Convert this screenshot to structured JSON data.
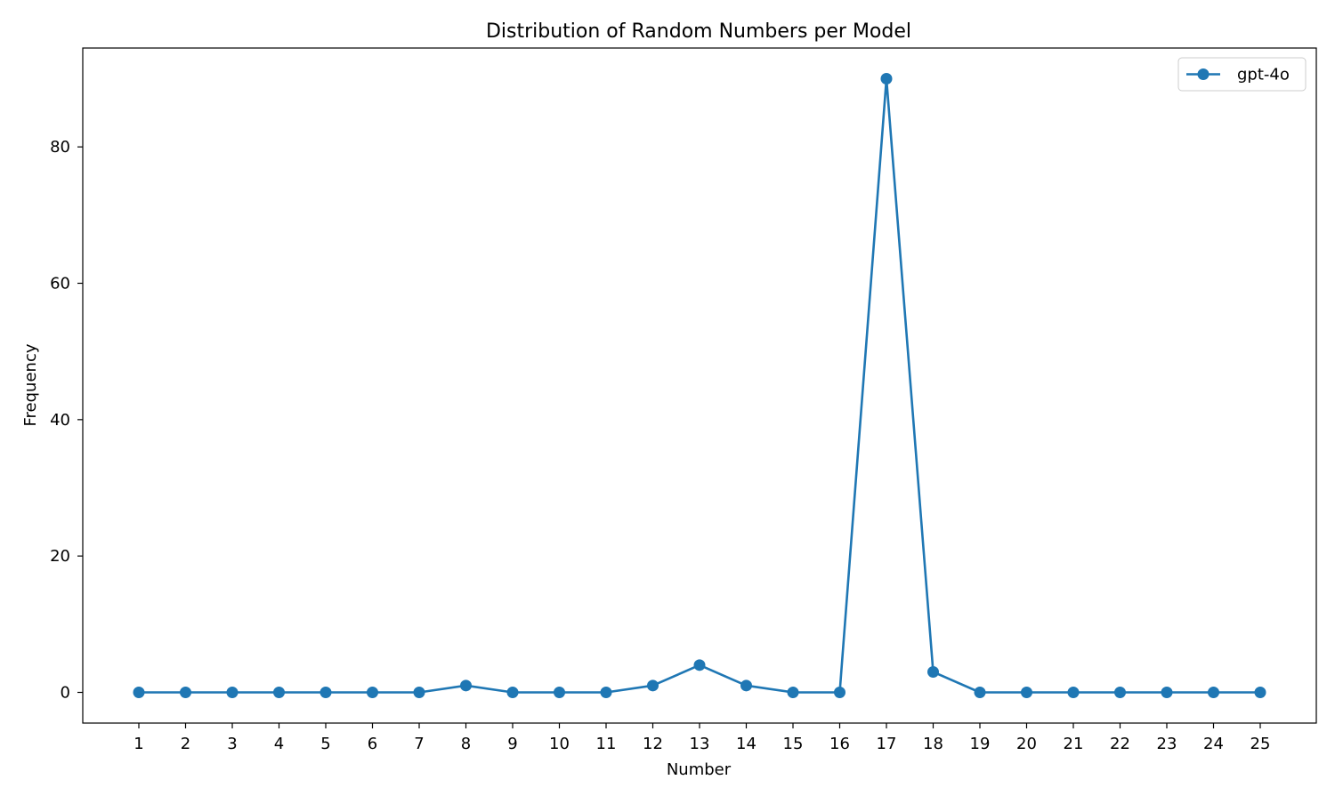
{
  "chart_data": {
    "type": "line",
    "title": "Distribution of Random Numbers per Model",
    "xlabel": "Number",
    "ylabel": "Frequency",
    "x": [
      1,
      2,
      3,
      4,
      5,
      6,
      7,
      8,
      9,
      10,
      11,
      12,
      13,
      14,
      15,
      16,
      17,
      18,
      19,
      20,
      21,
      22,
      23,
      24,
      25
    ],
    "xticks": [
      "1",
      "2",
      "3",
      "4",
      "5",
      "6",
      "7",
      "8",
      "9",
      "10",
      "11",
      "12",
      "13",
      "14",
      "15",
      "16",
      "17",
      "18",
      "19",
      "20",
      "21",
      "22",
      "23",
      "24",
      "25"
    ],
    "yticks": [
      0,
      20,
      40,
      60,
      80
    ],
    "xlim": [
      -0.2,
      26.2
    ],
    "ylim": [
      -4.5,
      94.5
    ],
    "grid": false,
    "legend_position": "top-right",
    "series": [
      {
        "name": "gpt-4o",
        "color": "#1f77b4",
        "marker": "circle",
        "values": [
          0,
          0,
          0,
          0,
          0,
          0,
          0,
          1,
          0,
          0,
          0,
          1,
          4,
          1,
          0,
          0,
          90,
          3,
          0,
          0,
          0,
          0,
          0,
          0,
          0
        ]
      }
    ]
  }
}
